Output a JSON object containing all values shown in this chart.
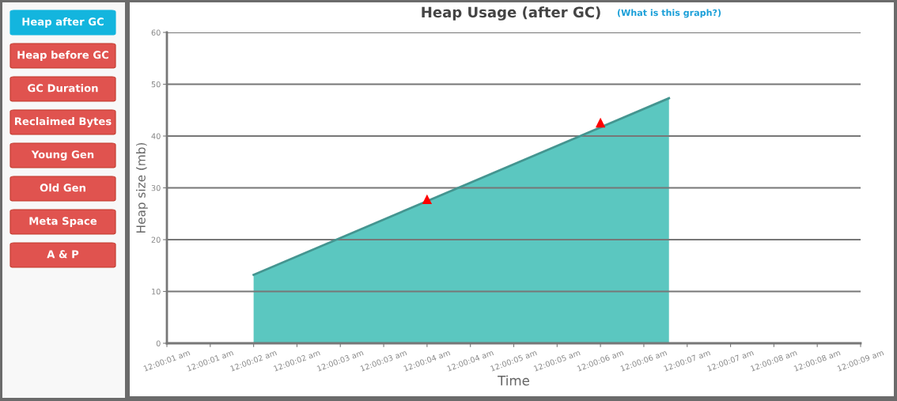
{
  "chart_data": {
    "type": "area",
    "title": "Heap Usage (after GC)",
    "xlabel": "Time",
    "ylabel": "Heap size (mb)",
    "annotations": [
      "(What is this graph?)",
      "Heap after GC",
      "Heap before GC",
      "GC Duration",
      "Reclaimed Bytes",
      "Young Gen",
      "Old Gen",
      "Meta Space",
      "A & P"
    ],
    "series": [
      {
        "color": "#5bc7c0",
        "x": [
          0.000555556,
          0.00188611
        ],
        "values": [
          13.2,
          47.3
        ]
      },
      {
        "type": "scatter",
        "color": "#ff0000",
        "marker": "triangle",
        "x": [
          0.00111111,
          0.00166667
        ],
        "values": [
          27.8,
          42.6
        ]
      }
    ],
    "xlim": [
      0.000277778,
      0.0025
    ],
    "xticks": [
      {
        "value": 0.000277778,
        "label": "12:00:01 am"
      },
      {
        "value": 0.000416666,
        "label": "12:00:01 am"
      },
      {
        "value": 0.000555556,
        "label": "12:00:02 am"
      },
      {
        "value": 0.000694444,
        "label": "12:00:02 am"
      },
      {
        "value": 0.000833333,
        "label": "12:00:03 am"
      },
      {
        "value": 0.000972222,
        "label": "12:00:03 am"
      },
      {
        "value": 0.00111111,
        "label": "12:00:04 am"
      },
      {
        "value": 0.00125,
        "label": "12:00:04 am"
      },
      {
        "value": 0.00138889,
        "label": "12:00:05 am"
      },
      {
        "value": 0.00152777,
        "label": "12:00:05 am"
      },
      {
        "value": 0.00166667,
        "label": "12:00:06 am"
      },
      {
        "value": 0.00180555,
        "label": "12:00:06 am"
      },
      {
        "value": 0.00194444,
        "label": "12:00:07 am"
      },
      {
        "value": 0.00208333,
        "label": "12:00:07 am"
      },
      {
        "value": 0.00222222,
        "label": "12:00:08 am"
      },
      {
        "value": 0.00236111,
        "label": "12:00:08 am"
      },
      {
        "value": 0.0025,
        "label": "12:00:09 am"
      }
    ],
    "ylim": [
      0,
      60
    ],
    "yticks": [
      0,
      10,
      20,
      30,
      40,
      50,
      60
    ],
    "grid": "y",
    "legend": false
  }
}
